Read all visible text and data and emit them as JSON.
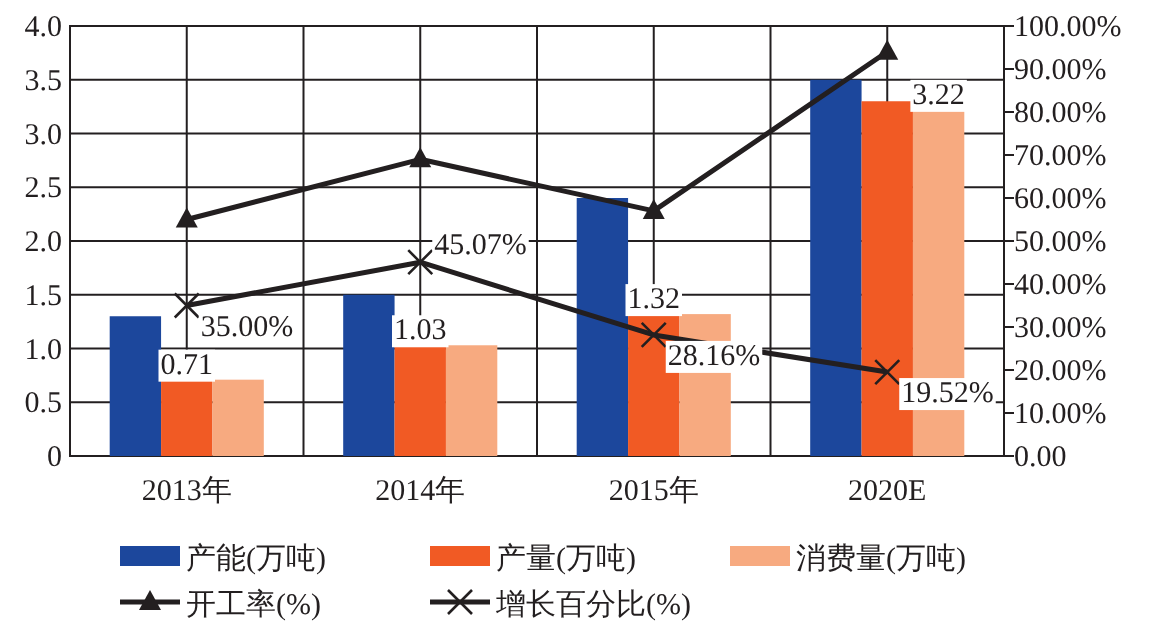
{
  "chart_data": {
    "type": "bar",
    "categories": [
      "2013年",
      "2014年",
      "2015年",
      "2020E"
    ],
    "series": [
      {
        "name": "产能(万吨)",
        "color": "#1c479c",
        "values": [
          1.3,
          1.5,
          2.4,
          3.5
        ]
      },
      {
        "name": "产量(万吨)",
        "color": "#f15a24",
        "values": [
          0.71,
          1.03,
          1.32,
          3.3
        ],
        "value_labels": [
          "0.71",
          "1.03",
          "1.32",
          null
        ]
      },
      {
        "name": "消费量(万吨)",
        "color": "#f7aa80",
        "values": [
          0.71,
          1.03,
          1.32,
          3.22
        ],
        "value_labels": [
          null,
          null,
          null,
          "3.22"
        ]
      },
      {
        "name": "开工率(%)",
        "type": "line",
        "axis": "y2",
        "color": "#231f20",
        "marker": "triangle",
        "values": [
          55,
          69,
          57,
          94
        ]
      },
      {
        "name": "增长百分比(%)",
        "type": "line",
        "axis": "y2",
        "color": "#231f20",
        "marker": "cross",
        "values": [
          35.0,
          45.07,
          28.16,
          19.52
        ],
        "value_labels": [
          "35.00%",
          "45.07%",
          "28.16%",
          "19.52%"
        ]
      }
    ],
    "ylim": [
      0,
      4
    ],
    "yticks": [
      0,
      0.5,
      {
        "value": 1,
        "label": "1.0"
      },
      1.5,
      {
        "value": 2,
        "label": "2.0"
      },
      2.5,
      {
        "value": 3,
        "label": "3.0"
      },
      3.5,
      {
        "value": 4,
        "label": "4.0"
      }
    ],
    "y2lim": [
      0,
      100
    ],
    "y2ticks": [
      {
        "value": 0,
        "label": "0.00"
      },
      {
        "value": 10,
        "label": "10.00%"
      },
      {
        "value": 20,
        "label": "20.00%"
      },
      {
        "value": 30,
        "label": "30.00%"
      },
      {
        "value": 40,
        "label": "40.00%"
      },
      {
        "value": 50,
        "label": "50.00%"
      },
      {
        "value": 60,
        "label": "60.00%"
      },
      {
        "value": 70,
        "label": "70.00%"
      },
      {
        "value": 80,
        "label": "80.00%"
      },
      {
        "value": 90,
        "label": "90.00%"
      },
      {
        "value": 100,
        "label": "100.00%"
      }
    ],
    "grid": true,
    "legend": "bottom"
  }
}
